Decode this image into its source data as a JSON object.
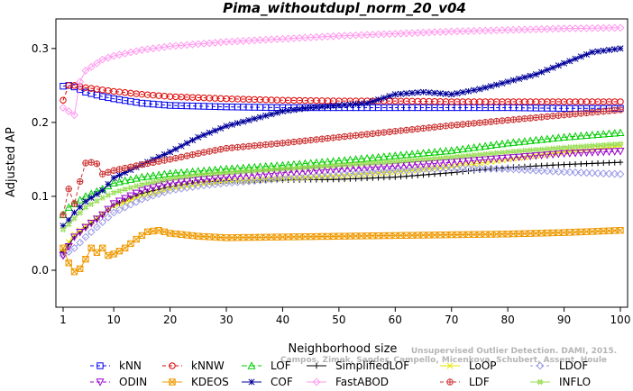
{
  "chart_data": {
    "type": "line",
    "title": "Pima_withoutdupl_norm_20_v04",
    "xlabel": "Neighborhood size",
    "ylabel": "Adjusted AP",
    "xlim": [
      1,
      100
    ],
    "ylim": [
      -0.05,
      0.34
    ],
    "x_ticks": [
      1,
      10,
      20,
      30,
      40,
      50,
      60,
      70,
      80,
      90,
      100
    ],
    "y_ticks": [
      0.0,
      0.1,
      0.2,
      0.3
    ],
    "y_tick_labels": [
      "0.0",
      "0.1",
      "0.2",
      "0.3"
    ],
    "grid": false,
    "legend_position": "bottom",
    "watermark_lines": [
      "Campos, Zimek, Sander, Campello, Micenkova, Schubert, Assent, Houle",
      "Unsupervised Outlier Detection. DAMI, 2015."
    ],
    "series": [
      {
        "name": "kNN",
        "color": "#0000ee",
        "marker": "square",
        "dash": "4,3",
        "points": [
          [
            1,
            0.249
          ],
          [
            2,
            0.25
          ],
          [
            3,
            0.248
          ],
          [
            5,
            0.241
          ],
          [
            8,
            0.235
          ],
          [
            10,
            0.232
          ],
          [
            15,
            0.226
          ],
          [
            20,
            0.223
          ],
          [
            30,
            0.221
          ],
          [
            40,
            0.22
          ],
          [
            50,
            0.22
          ],
          [
            60,
            0.22
          ],
          [
            70,
            0.22
          ],
          [
            80,
            0.22
          ],
          [
            90,
            0.219
          ],
          [
            100,
            0.219
          ]
        ]
      },
      {
        "name": "kNNW",
        "color": "#dd0000",
        "marker": "circle",
        "dash": "4,3",
        "points": [
          [
            1,
            0.23
          ],
          [
            2,
            0.25
          ],
          [
            3,
            0.25
          ],
          [
            5,
            0.247
          ],
          [
            10,
            0.242
          ],
          [
            15,
            0.238
          ],
          [
            20,
            0.235
          ],
          [
            30,
            0.232
          ],
          [
            40,
            0.23
          ],
          [
            50,
            0.229
          ],
          [
            60,
            0.229
          ],
          [
            70,
            0.228
          ],
          [
            80,
            0.228
          ],
          [
            90,
            0.228
          ],
          [
            100,
            0.228
          ]
        ]
      },
      {
        "name": "LOF",
        "color": "#00cc00",
        "marker": "triangle",
        "dash": "6,3",
        "points": [
          [
            1,
            0.075
          ],
          [
            2,
            0.085
          ],
          [
            3,
            0.09
          ],
          [
            5,
            0.1
          ],
          [
            8,
            0.11
          ],
          [
            10,
            0.118
          ],
          [
            15,
            0.126
          ],
          [
            20,
            0.131
          ],
          [
            25,
            0.134
          ],
          [
            30,
            0.137
          ],
          [
            40,
            0.142
          ],
          [
            50,
            0.148
          ],
          [
            60,
            0.155
          ],
          [
            70,
            0.162
          ],
          [
            80,
            0.172
          ],
          [
            90,
            0.18
          ],
          [
            100,
            0.186
          ]
        ]
      },
      {
        "name": "SimplifiedLOF",
        "color": "#000000",
        "marker": "plus",
        "dash": "none",
        "points": [
          [
            1,
            0.025
          ],
          [
            2,
            0.035
          ],
          [
            3,
            0.045
          ],
          [
            5,
            0.058
          ],
          [
            8,
            0.075
          ],
          [
            10,
            0.088
          ],
          [
            15,
            0.104
          ],
          [
            20,
            0.113
          ],
          [
            25,
            0.119
          ],
          [
            30,
            0.121
          ],
          [
            40,
            0.122
          ],
          [
            50,
            0.123
          ],
          [
            60,
            0.126
          ],
          [
            70,
            0.132
          ],
          [
            80,
            0.139
          ],
          [
            90,
            0.143
          ],
          [
            100,
            0.146
          ]
        ]
      },
      {
        "name": "LoOP",
        "color": "#e6e600",
        "marker": "x",
        "dash": "none",
        "points": [
          [
            1,
            0.03
          ],
          [
            2,
            0.038
          ],
          [
            3,
            0.048
          ],
          [
            5,
            0.06
          ],
          [
            8,
            0.076
          ],
          [
            10,
            0.087
          ],
          [
            15,
            0.1
          ],
          [
            20,
            0.11
          ],
          [
            25,
            0.116
          ],
          [
            30,
            0.12
          ],
          [
            40,
            0.124
          ],
          [
            50,
            0.128
          ],
          [
            60,
            0.133
          ],
          [
            70,
            0.14
          ],
          [
            80,
            0.15
          ],
          [
            90,
            0.16
          ],
          [
            100,
            0.168
          ]
        ]
      },
      {
        "name": "LDOF",
        "color": "#9a9ae6",
        "marker": "diamond",
        "dash": "3,3",
        "points": [
          [
            1,
            0.02
          ],
          [
            2,
            0.025
          ],
          [
            3,
            0.03
          ],
          [
            5,
            0.045
          ],
          [
            8,
            0.065
          ],
          [
            10,
            0.078
          ],
          [
            15,
            0.096
          ],
          [
            20,
            0.108
          ],
          [
            25,
            0.114
          ],
          [
            30,
            0.118
          ],
          [
            40,
            0.124
          ],
          [
            50,
            0.13
          ],
          [
            60,
            0.135
          ],
          [
            70,
            0.138
          ],
          [
            80,
            0.137
          ],
          [
            90,
            0.133
          ],
          [
            100,
            0.13
          ]
        ]
      },
      {
        "name": "ODIN",
        "color": "#9900cc",
        "marker": "triangle-down",
        "dash": "4,3",
        "points": [
          [
            1,
            0.02
          ],
          [
            2,
            0.032
          ],
          [
            3,
            0.045
          ],
          [
            5,
            0.058
          ],
          [
            8,
            0.075
          ],
          [
            10,
            0.09
          ],
          [
            15,
            0.108
          ],
          [
            20,
            0.118
          ],
          [
            25,
            0.122
          ],
          [
            30,
            0.126
          ],
          [
            40,
            0.132
          ],
          [
            50,
            0.137
          ],
          [
            60,
            0.141
          ],
          [
            70,
            0.146
          ],
          [
            80,
            0.152
          ],
          [
            90,
            0.158
          ],
          [
            100,
            0.161
          ]
        ]
      },
      {
        "name": "KDEOS",
        "color": "#ee9900",
        "marker": "square-x",
        "dash": "none",
        "points": [
          [
            1,
            0.03
          ],
          [
            2,
            0.01
          ],
          [
            3,
            -0.002
          ],
          [
            4,
            0.002
          ],
          [
            5,
            0.015
          ],
          [
            6,
            0.03
          ],
          [
            7,
            0.024
          ],
          [
            8,
            0.03
          ],
          [
            9,
            0.02
          ],
          [
            10,
            0.022
          ],
          [
            12,
            0.03
          ],
          [
            14,
            0.042
          ],
          [
            16,
            0.052
          ],
          [
            18,
            0.054
          ],
          [
            20,
            0.05
          ],
          [
            25,
            0.046
          ],
          [
            30,
            0.044
          ],
          [
            40,
            0.045
          ],
          [
            50,
            0.046
          ],
          [
            60,
            0.047
          ],
          [
            70,
            0.048
          ],
          [
            80,
            0.049
          ],
          [
            90,
            0.051
          ],
          [
            100,
            0.054
          ]
        ]
      },
      {
        "name": "COF",
        "color": "#000099",
        "marker": "asterisk",
        "dash": "none",
        "points": [
          [
            1,
            0.06
          ],
          [
            2,
            0.068
          ],
          [
            3,
            0.078
          ],
          [
            5,
            0.093
          ],
          [
            8,
            0.108
          ],
          [
            10,
            0.125
          ],
          [
            15,
            0.143
          ],
          [
            20,
            0.16
          ],
          [
            25,
            0.18
          ],
          [
            30,
            0.195
          ],
          [
            35,
            0.205
          ],
          [
            40,
            0.215
          ],
          [
            45,
            0.22
          ],
          [
            50,
            0.223
          ],
          [
            55,
            0.226
          ],
          [
            60,
            0.238
          ],
          [
            65,
            0.241
          ],
          [
            70,
            0.238
          ],
          [
            75,
            0.245
          ],
          [
            80,
            0.255
          ],
          [
            85,
            0.265
          ],
          [
            90,
            0.28
          ],
          [
            95,
            0.295
          ],
          [
            100,
            0.3
          ]
        ]
      },
      {
        "name": "FastABOD",
        "color": "#ff99ee",
        "marker": "diamond",
        "dash": "none",
        "points": [
          [
            1,
            0.22
          ],
          [
            2,
            0.215
          ],
          [
            3,
            0.21
          ],
          [
            4,
            0.255
          ],
          [
            5,
            0.27
          ],
          [
            8,
            0.285
          ],
          [
            10,
            0.29
          ],
          [
            15,
            0.298
          ],
          [
            20,
            0.303
          ],
          [
            30,
            0.309
          ],
          [
            40,
            0.313
          ],
          [
            50,
            0.317
          ],
          [
            60,
            0.32
          ],
          [
            70,
            0.323
          ],
          [
            80,
            0.325
          ],
          [
            90,
            0.327
          ],
          [
            100,
            0.328
          ]
        ]
      },
      {
        "name": "LDF",
        "color": "#cc3333",
        "marker": "circle-plus",
        "dash": "4,3",
        "points": [
          [
            1,
            0.075
          ],
          [
            2,
            0.11
          ],
          [
            3,
            0.09
          ],
          [
            4,
            0.12
          ],
          [
            5,
            0.145
          ],
          [
            6,
            0.146
          ],
          [
            7,
            0.144
          ],
          [
            8,
            0.13
          ],
          [
            10,
            0.135
          ],
          [
            15,
            0.143
          ],
          [
            20,
            0.15
          ],
          [
            25,
            0.158
          ],
          [
            30,
            0.165
          ],
          [
            40,
            0.172
          ],
          [
            50,
            0.18
          ],
          [
            60,
            0.188
          ],
          [
            70,
            0.196
          ],
          [
            80,
            0.203
          ],
          [
            90,
            0.21
          ],
          [
            100,
            0.217
          ]
        ]
      },
      {
        "name": "INFLO",
        "color": "#99dd55",
        "marker": "hash",
        "dash": "none",
        "points": [
          [
            1,
            0.055
          ],
          [
            2,
            0.062
          ],
          [
            3,
            0.07
          ],
          [
            5,
            0.085
          ],
          [
            8,
            0.098
          ],
          [
            10,
            0.105
          ],
          [
            15,
            0.116
          ],
          [
            20,
            0.124
          ],
          [
            25,
            0.129
          ],
          [
            30,
            0.132
          ],
          [
            40,
            0.137
          ],
          [
            50,
            0.142
          ],
          [
            60,
            0.147
          ],
          [
            70,
            0.153
          ],
          [
            80,
            0.16
          ],
          [
            90,
            0.166
          ],
          [
            100,
            0.171
          ]
        ]
      }
    ],
    "legend_rows": [
      [
        "kNN",
        "kNNW",
        "LOF",
        "SimplifiedLOF",
        "LoOP",
        "LDOF"
      ],
      [
        "ODIN",
        "KDEOS",
        "COF",
        "FastABOD",
        "LDF",
        "INFLO"
      ]
    ]
  }
}
